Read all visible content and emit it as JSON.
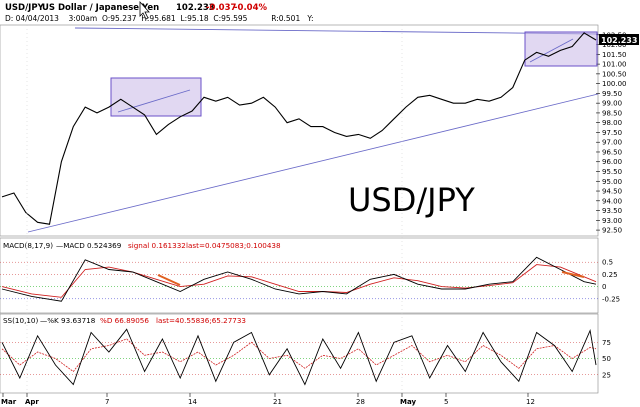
{
  "header": {
    "symbol": "USD/JPY",
    "name": "US Dollar / Japanese Yen",
    "last": "102.233",
    "change": "-0.037",
    "change_pct": "-0.04%",
    "info_line": "D: 04/04/2013    3:00am  O:95.237  H:95.681  L:95.18  C:95.595          R:0.501   Y:"
  },
  "watermark": "USD/JPY",
  "colors": {
    "price": "#000000",
    "signal": "#d02020",
    "trendline": "#6a6ac8",
    "box_fill": "#c8b8e8",
    "box_stroke": "#6a50c8",
    "arrow": "#e06020",
    "grid_pos": "#cc3333",
    "grid_zero": "#00aa00",
    "axis": "#000000",
    "text_red": "#d00000"
  },
  "macd": {
    "label": "MACD(8,17,9)",
    "macd_text": "—MACD 0.524369",
    "signal_text": "signal 0.161332",
    "last_text": "last=0.0475083;0.100438"
  },
  "stoch": {
    "label": "SS(10,10)",
    "k_text": "—%K 93.63718",
    "d_text": "%D 66.89056",
    "last_text": "last=40.55836;65.27733"
  },
  "chart_data": [
    {
      "type": "line",
      "title": "USD/JPY",
      "x_ticks": [
        "Mar",
        "Apr",
        "7",
        "14",
        "21",
        "28",
        "May",
        "5",
        "12"
      ],
      "y_ticks": [
        "92.50",
        "93.00",
        "93.50",
        "94.00",
        "94.50",
        "95.00",
        "95.50",
        "96.00",
        "96.50",
        "97.00",
        "97.50",
        "98.00",
        "98.50",
        "99.00",
        "99.50",
        "100.00",
        "100.50",
        "101.00",
        "101.50",
        "102.00",
        "102.50"
      ],
      "ylim": [
        92.3,
        102.9
      ],
      "last_label": "102.233",
      "series": [
        {
          "name": "USD/JPY",
          "x": [
            0,
            2,
            4,
            6,
            8,
            10,
            12,
            14,
            16,
            18,
            20,
            22,
            24,
            26,
            28,
            30,
            32,
            34,
            36,
            38,
            40,
            42,
            44,
            46,
            48,
            50,
            52,
            54,
            56,
            58,
            60,
            62,
            64,
            66,
            68,
            70,
            72,
            74,
            76,
            78,
            80,
            82,
            84,
            86,
            88,
            90,
            92,
            94,
            96,
            98,
            100
          ],
          "values": [
            94.2,
            94.4,
            93.4,
            92.9,
            92.8,
            96.0,
            97.8,
            98.8,
            98.5,
            98.8,
            99.2,
            98.8,
            98.4,
            97.4,
            97.9,
            98.3,
            98.6,
            99.3,
            99.1,
            99.3,
            98.9,
            99.0,
            99.3,
            98.8,
            98.0,
            98.2,
            97.8,
            97.8,
            97.5,
            97.3,
            97.4,
            97.2,
            97.6,
            98.2,
            98.8,
            99.3,
            99.4,
            99.2,
            99.0,
            99.0,
            99.2,
            99.1,
            99.3,
            99.8,
            101.2,
            101.6,
            101.4,
            101.7,
            101.9,
            102.6,
            102.233
          ]
        }
      ]
    },
    {
      "type": "line",
      "title": "MACD(8,17,9)",
      "y_ticks": [
        "0.5",
        "0.25",
        "0",
        "-0.25"
      ],
      "ylim": [
        -0.5,
        0.75
      ],
      "series": [
        {
          "name": "MACD",
          "x": [
            0,
            5,
            10,
            14,
            18,
            22,
            26,
            30,
            34,
            38,
            42,
            46,
            50,
            54,
            58,
            62,
            66,
            70,
            74,
            78,
            82,
            86,
            90,
            94,
            98,
            100
          ],
          "values": [
            -0.05,
            -0.2,
            -0.3,
            0.55,
            0.35,
            0.3,
            0.1,
            -0.1,
            0.15,
            0.3,
            0.15,
            -0.05,
            -0.15,
            -0.1,
            -0.15,
            0.15,
            0.25,
            0.05,
            -0.05,
            -0.05,
            0.05,
            0.1,
            0.6,
            0.35,
            0.1,
            0.05
          ]
        },
        {
          "name": "signal",
          "x": [
            0,
            5,
            10,
            14,
            18,
            22,
            26,
            30,
            34,
            38,
            42,
            46,
            50,
            54,
            58,
            62,
            66,
            70,
            74,
            78,
            82,
            86,
            90,
            94,
            98,
            100
          ],
          "values": [
            0.0,
            -0.15,
            -0.22,
            0.35,
            0.4,
            0.3,
            0.15,
            0.0,
            0.05,
            0.22,
            0.2,
            0.05,
            -0.1,
            -0.1,
            -0.12,
            0.05,
            0.18,
            0.12,
            0.0,
            -0.03,
            0.02,
            0.08,
            0.45,
            0.4,
            0.2,
            0.1
          ]
        }
      ]
    },
    {
      "type": "line",
      "title": "SS(10,10)",
      "y_ticks": [
        "75",
        "50",
        "25"
      ],
      "ylim": [
        0,
        100
      ],
      "series": [
        {
          "name": "%K",
          "x": [
            0,
            3,
            6,
            9,
            12,
            15,
            18,
            21,
            24,
            27,
            30,
            33,
            36,
            39,
            42,
            45,
            48,
            51,
            54,
            57,
            60,
            63,
            66,
            69,
            72,
            75,
            78,
            81,
            84,
            87,
            90,
            93,
            96,
            99,
            100
          ],
          "values": [
            75,
            20,
            85,
            40,
            10,
            90,
            60,
            95,
            30,
            80,
            20,
            85,
            15,
            75,
            90,
            25,
            65,
            10,
            80,
            35,
            90,
            15,
            75,
            85,
            20,
            70,
            30,
            90,
            45,
            15,
            90,
            70,
            30,
            93,
            40
          ]
        },
        {
          "name": "%D",
          "x": [
            0,
            3,
            6,
            9,
            12,
            15,
            18,
            21,
            24,
            27,
            30,
            33,
            36,
            39,
            42,
            45,
            48,
            51,
            54,
            57,
            60,
            63,
            66,
            69,
            72,
            75,
            78,
            81,
            84,
            87,
            90,
            93,
            96,
            99,
            100
          ],
          "values": [
            65,
            40,
            60,
            50,
            30,
            65,
            70,
            80,
            55,
            60,
            45,
            60,
            40,
            55,
            75,
            50,
            55,
            35,
            55,
            50,
            65,
            40,
            55,
            70,
            45,
            55,
            45,
            70,
            55,
            35,
            65,
            70,
            50,
            67,
            65
          ]
        }
      ]
    }
  ]
}
